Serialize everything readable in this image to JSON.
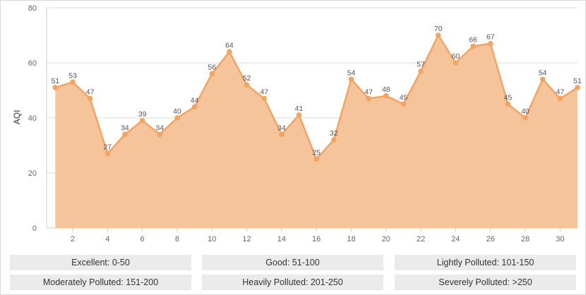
{
  "chart_data": {
    "type": "area",
    "title": "",
    "xlabel": "",
    "ylabel": "AQI",
    "x": [
      1,
      2,
      3,
      4,
      5,
      6,
      7,
      8,
      9,
      10,
      11,
      12,
      13,
      14,
      15,
      16,
      17,
      18,
      19,
      20,
      21,
      22,
      23,
      24,
      25,
      26,
      27,
      28,
      29,
      30,
      31
    ],
    "values": [
      51,
      53,
      47,
      27,
      34,
      39,
      34,
      40,
      44,
      56,
      64,
      52,
      47,
      34,
      41,
      25,
      32,
      54,
      47,
      48,
      45,
      57,
      70,
      60,
      66,
      67,
      45,
      40,
      54,
      47,
      51
    ],
    "x_ticks": [
      2,
      4,
      6,
      8,
      10,
      12,
      14,
      16,
      18,
      20,
      22,
      24,
      26,
      28,
      30
    ],
    "y_ticks": [
      0,
      20,
      40,
      60,
      80
    ],
    "xlim": [
      0.5,
      31
    ],
    "ylim": [
      0,
      80
    ],
    "grid": "horizontal",
    "colors": {
      "line": "#f4a460",
      "fill": "#f5c49b",
      "grid": "#dddddd"
    }
  },
  "legend": [
    {
      "label": "Excellent: 0-50"
    },
    {
      "label": "Good: 51-100"
    },
    {
      "label": "Lightly Polluted: 101-150"
    },
    {
      "label": "Moderately Polluted: 151-200"
    },
    {
      "label": "Heavily Polluted: 201-250"
    },
    {
      "label": "Severely Polluted: >250"
    }
  ]
}
